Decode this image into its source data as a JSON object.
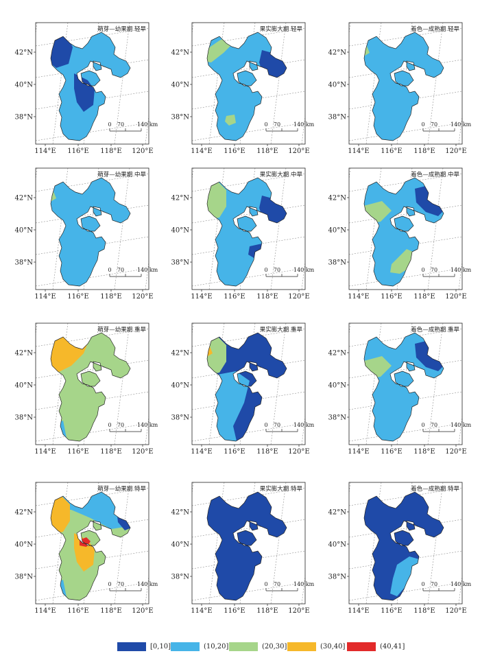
{
  "colors": {
    "c1": "#1f4aa8",
    "c2": "#46b4e8",
    "c3": "#a6d58a",
    "c4": "#f6b82a",
    "c5": "#e22a2a"
  },
  "axis": {
    "lon_ticks": [
      "114°E",
      "116°E",
      "118°E",
      "120°E"
    ],
    "lat_ticks": [
      "42°N",
      "40°N",
      "38°N"
    ]
  },
  "scalebar": {
    "labels": [
      "0",
      "70",
      "140 km"
    ]
  },
  "panels": [
    {
      "title": "萌芽—幼果期 轻旱",
      "fill": "c2",
      "patches": [
        {
          "c": "c1",
          "shape": "nw"
        },
        {
          "c": "c1",
          "shape": "center"
        }
      ]
    },
    {
      "title": "果实膨大期 轻旱",
      "fill": "c2",
      "patches": [
        {
          "c": "c3",
          "shape": "nwstrip"
        },
        {
          "c": "c1",
          "shape": "ne"
        },
        {
          "c": "c3",
          "shape": "spot"
        }
      ]
    },
    {
      "title": "着色—成熟期 轻旱",
      "fill": "c2",
      "patches": [
        {
          "c": "c3",
          "shape": "tinynw"
        },
        {
          "c": "c1",
          "shape": "westedge"
        }
      ]
    },
    {
      "title": "萌芽—幼果期 中旱",
      "fill": "c2",
      "patches": [
        {
          "c": "c3",
          "shape": "tinynw"
        }
      ]
    },
    {
      "title": "果实膨大期 中旱",
      "fill": "c2",
      "patches": [
        {
          "c": "c3",
          "shape": "nwband"
        },
        {
          "c": "c1",
          "shape": "ne"
        },
        {
          "c": "c1",
          "shape": "eastspot"
        }
      ]
    },
    {
      "title": "着色—成熟期 中旱",
      "fill": "c2",
      "patches": [
        {
          "c": "c3",
          "shape": "westband"
        },
        {
          "c": "c1",
          "shape": "nedots"
        },
        {
          "c": "c3",
          "shape": "southband"
        }
      ]
    },
    {
      "title": "萌芽—幼果期 重旱",
      "fill": "c3",
      "patches": [
        {
          "c": "c4",
          "shape": "nwbig"
        },
        {
          "c": "c2",
          "shape": "swcorner"
        }
      ]
    },
    {
      "title": "果实膨大期 重旱",
      "fill": "c1",
      "patches": [
        {
          "c": "c2",
          "shape": "southwest"
        },
        {
          "c": "c3",
          "shape": "nwband"
        },
        {
          "c": "c4",
          "shape": "tinynw"
        }
      ]
    },
    {
      "title": "着色—成熟期 重旱",
      "fill": "c2",
      "patches": [
        {
          "c": "c1",
          "shape": "nedots"
        },
        {
          "c": "c3",
          "shape": "westband"
        },
        {
          "c": "c1",
          "shape": "westedge"
        }
      ]
    },
    {
      "title": "萌芽—幼果期 特旱",
      "fill": "c3",
      "patches": [
        {
          "c": "c2",
          "shape": "northhalf"
        },
        {
          "c": "c4",
          "shape": "nwband"
        },
        {
          "c": "c4",
          "shape": "center"
        },
        {
          "c": "c5",
          "shape": "redspot"
        },
        {
          "c": "c1",
          "shape": "needge"
        },
        {
          "c": "c2",
          "shape": "swcorner"
        }
      ]
    },
    {
      "title": "果实膨大期 特旱",
      "fill": "c1",
      "patches": []
    },
    {
      "title": "着色—成熟期 特旱",
      "fill": "c1",
      "patches": [
        {
          "c": "c2",
          "shape": "eaststrip"
        }
      ]
    }
  ],
  "legend": [
    {
      "label": "[0,10]",
      "color": "c1"
    },
    {
      "label": "(10,20]",
      "color": "c2"
    },
    {
      "label": "(20,30]",
      "color": "c3"
    },
    {
      "label": "(30,40]",
      "color": "c4"
    },
    {
      "label": "(40,41]",
      "color": "c5"
    }
  ]
}
